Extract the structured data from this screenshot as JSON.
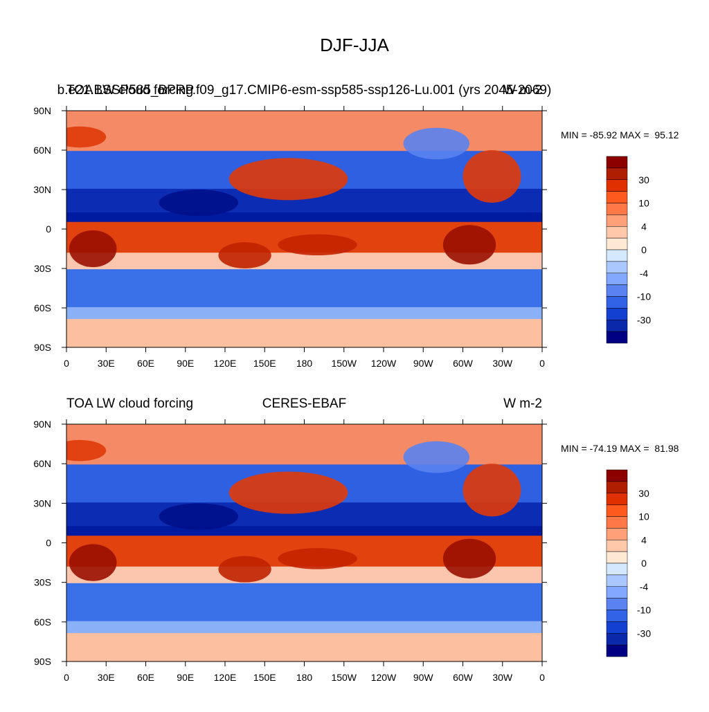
{
  "title": "DJF-JJA",
  "panels": [
    {
      "left_title": "TOA LW cloud forcing",
      "center_title": "b.e21.BSSP585_BPRP.f09_g17.CMIP6-esm-ssp585-ssp126-Lu.001 (yrs 2045-2069)",
      "right_title": "W m-2",
      "min_max": "MIN = -85.92 MAX =  95.12",
      "colorbar_labels": [
        "30",
        "10",
        "4",
        "0",
        "-4",
        "-10",
        "-30"
      ]
    },
    {
      "left_title": "TOA LW cloud forcing",
      "center_title": "CERES-EBAF",
      "right_title": "W m-2",
      "min_max": "MIN = -74.19 MAX =  81.98",
      "colorbar_labels": [
        "30",
        "10",
        "4",
        "0",
        "-4",
        "-10",
        "-30"
      ]
    }
  ],
  "lat_labels": [
    "90N",
    "60N",
    "30N",
    "0",
    "30S",
    "60S",
    "90S"
  ],
  "lon_labels": [
    "0",
    "30E",
    "60E",
    "90E",
    "120E",
    "150E",
    "180",
    "150W",
    "120W",
    "90W",
    "60W",
    "30W",
    "0"
  ],
  "colorbar_colors": [
    "#8c0000",
    "#b01e00",
    "#e03000",
    "#ff5a1e",
    "#ff7848",
    "#ffa078",
    "#ffc8aa",
    "#ffe8d4",
    "#d4e8ff",
    "#aac8ff",
    "#82a8ff",
    "#5a82f0",
    "#3262e6",
    "#1440d2",
    "#0a28aa",
    "#000082"
  ]
}
